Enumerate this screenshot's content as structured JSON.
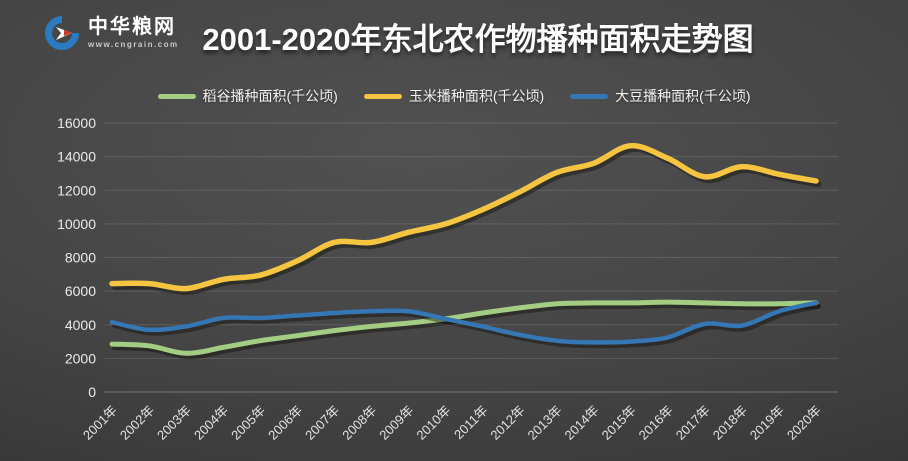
{
  "header": {
    "logo": {
      "name": "中华粮网",
      "url_text": "www.cngrain.com",
      "icon": "cngrain-logo-icon",
      "colors": {
        "brand_blue": "#2b7bc2",
        "brand_red": "#d03a2b"
      }
    },
    "title": "2001-2020年东北农作物播种面积走势图"
  },
  "chart_data": {
    "type": "line",
    "title": "2001-2020年东北农作物播种面积走势图",
    "xlabel": "",
    "ylabel": "",
    "ylim": [
      0,
      16000
    ],
    "yticks": [
      0,
      2000,
      4000,
      6000,
      8000,
      10000,
      12000,
      14000,
      16000
    ],
    "grid": true,
    "legend_position": "top",
    "line_style": "smooth",
    "categories": [
      "2001年",
      "2002年",
      "2003年",
      "2004年",
      "2005年",
      "2006年",
      "2007年",
      "2008年",
      "2009年",
      "2010年",
      "2011年",
      "2012年",
      "2013年",
      "2014年",
      "2015年",
      "2016年",
      "2017年",
      "2018年",
      "2019年",
      "2020年"
    ],
    "series": [
      {
        "id": "rice",
        "name": "稻谷播种面积(千公顷)",
        "color": "#a3cd82",
        "values": [
          2850,
          2750,
          2300,
          2650,
          3050,
          3350,
          3650,
          3900,
          4100,
          4350,
          4700,
          5000,
          5250,
          5300,
          5300,
          5350,
          5300,
          5250,
          5250,
          5300
        ]
      },
      {
        "id": "corn",
        "name": "玉米播种面积(千公顷)",
        "color": "#f5c440",
        "values": [
          6450,
          6450,
          6150,
          6700,
          6950,
          7800,
          8900,
          8900,
          9500,
          10000,
          10850,
          11900,
          13050,
          13600,
          14650,
          13900,
          12800,
          13400,
          12950,
          12550
        ]
      },
      {
        "id": "soybean",
        "name": "大豆播种面积(千公顷)",
        "color": "#3576b4",
        "values": [
          4150,
          3700,
          3900,
          4400,
          4400,
          4550,
          4700,
          4800,
          4800,
          4350,
          3900,
          3400,
          3050,
          2950,
          3000,
          3250,
          4050,
          3950,
          4800,
          5300
        ]
      }
    ]
  }
}
